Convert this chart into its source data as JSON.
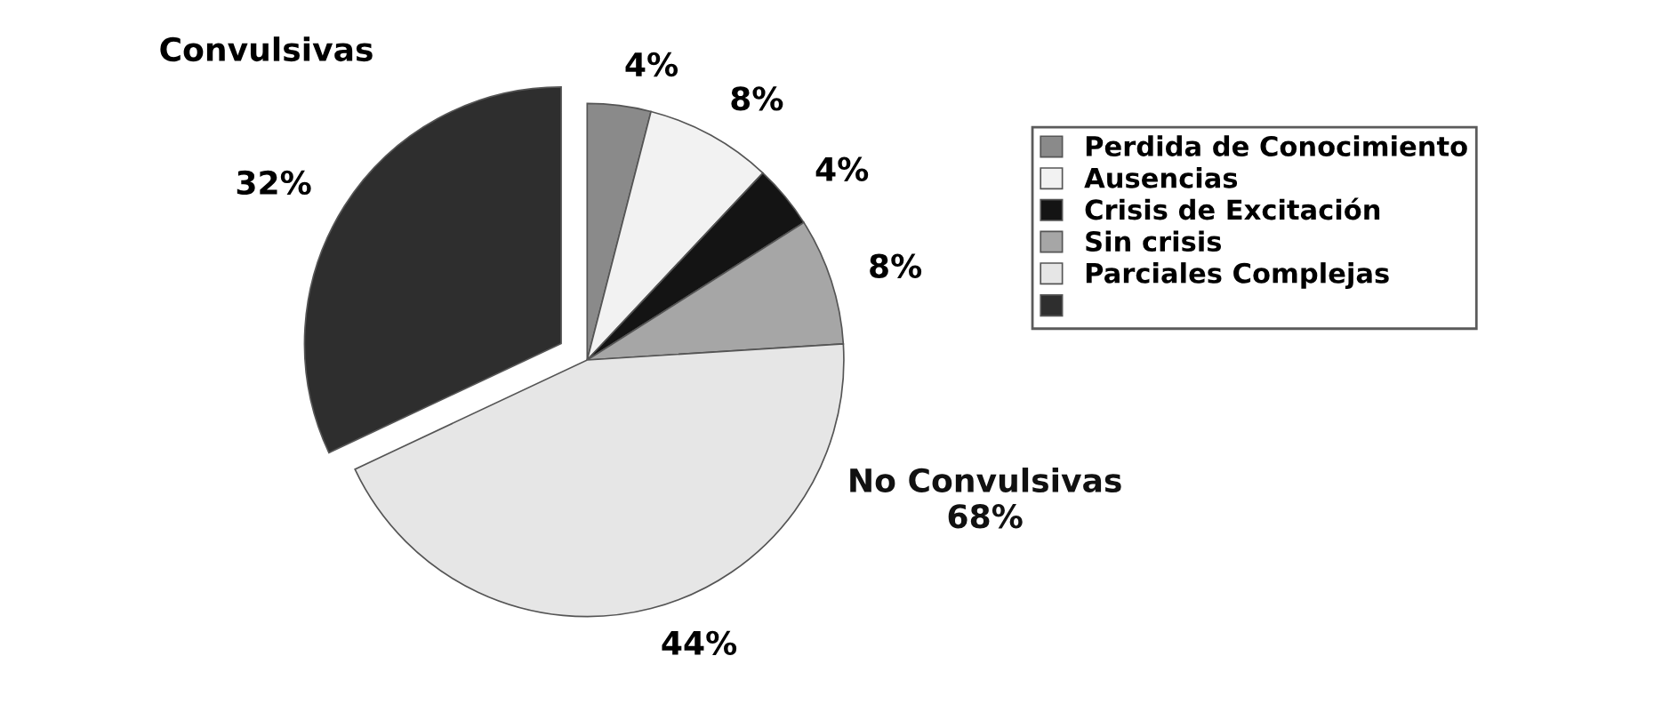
{
  "chart_data": {
    "type": "pie",
    "categories": [
      "Perdida de Conocimiento",
      "Ausencias",
      "Crisis de Excitación",
      "Sin crisis",
      "Parciales Complejas",
      null
    ],
    "values": [
      4,
      8,
      4,
      8,
      44,
      32
    ],
    "colors": [
      "#8a8a8a",
      "#f2f2f2",
      "#141414",
      "#a6a6a6",
      "#e6e6e6",
      "#2e2e2e"
    ],
    "value_labels": [
      "4%",
      "8%",
      "4%",
      "8%",
      "44%",
      "32%"
    ],
    "legend": "right",
    "annotations": [
      "Convulsivas",
      "No Convulsivas\n68%"
    ]
  }
}
